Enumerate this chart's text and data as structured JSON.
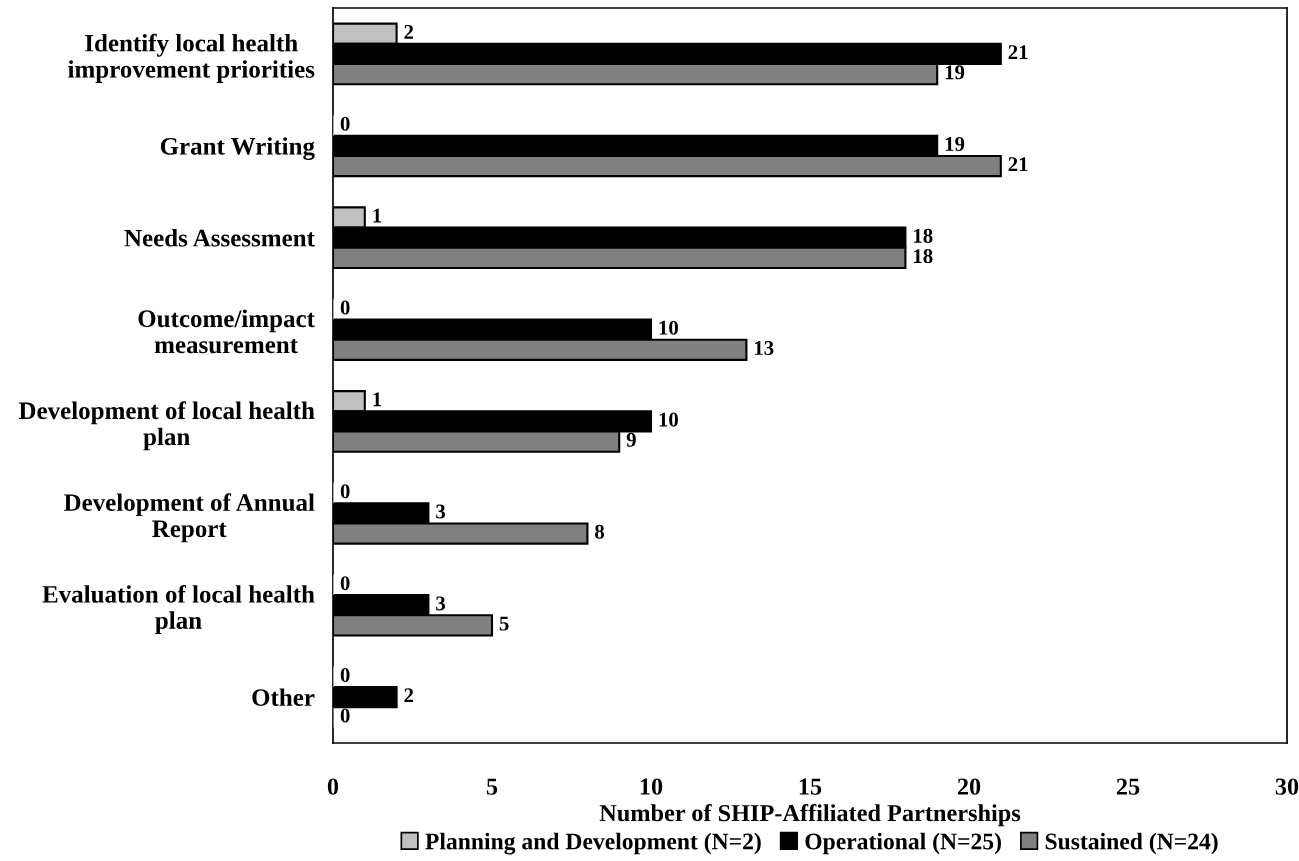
{
  "chart_data": {
    "type": "bar",
    "orientation": "horizontal",
    "xlabel": "Number of SHIP-Affiliated Partnerships",
    "categories": [
      "Identify local health\nimprovement priorities",
      "Grant Writing",
      "Needs Assessment",
      "Outcome/impact\nmeasurement",
      "Development of local health\nplan",
      "Development of Annual\nReport",
      "Evaluation of local health\nplan",
      "Other"
    ],
    "series": [
      {
        "name": "Planning and Development (N=2)",
        "color": "#c0c0c0",
        "values": [
          2,
          0,
          1,
          0,
          1,
          0,
          0,
          0
        ]
      },
      {
        "name": "Operational (N=25)",
        "color": "#000000",
        "values": [
          21,
          19,
          18,
          10,
          10,
          3,
          3,
          2
        ]
      },
      {
        "name": "Sustained (N=24)",
        "color": "#808080",
        "values": [
          19,
          21,
          18,
          13,
          9,
          8,
          5,
          0
        ]
      }
    ],
    "xlim": [
      0,
      30
    ],
    "xticks": [
      0,
      5,
      10,
      15,
      20,
      25,
      30
    ],
    "data_labels": true,
    "legend": "bottom"
  }
}
